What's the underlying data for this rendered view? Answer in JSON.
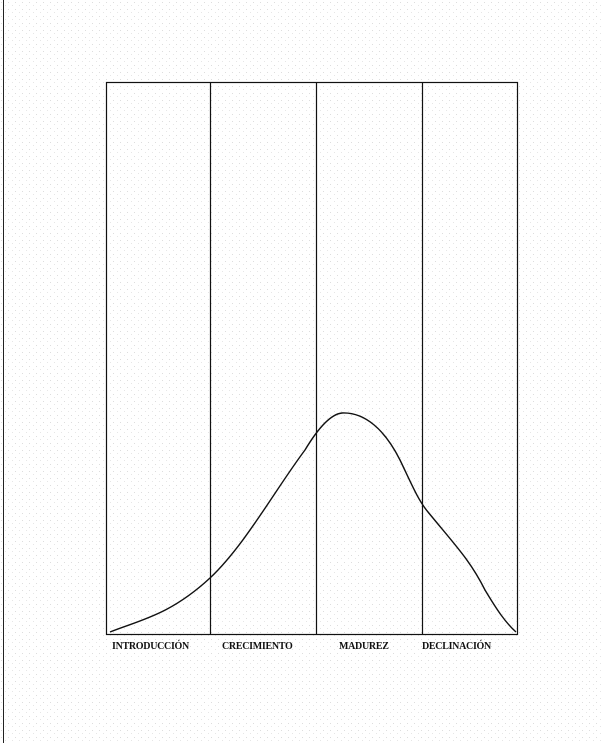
{
  "stages": [
    "INTRODUCCIÓN",
    "CRECIMIENTO",
    "MADUREZ",
    "DECLINACIÓN"
  ]
}
